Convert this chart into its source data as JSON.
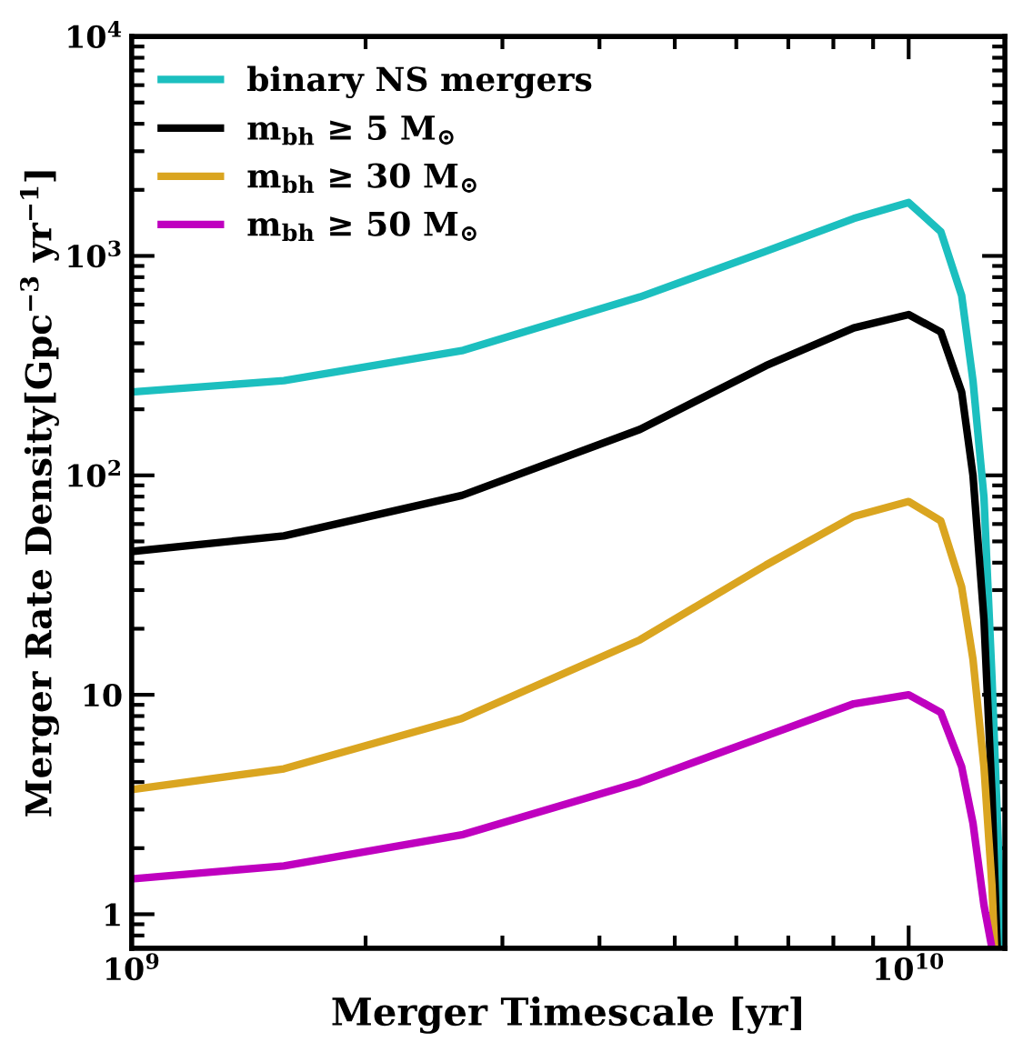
{
  "chart_data": {
    "type": "line",
    "xlabel": "Merger Timescale [yr]",
    "ylabel": "Merger Rate Density[Gpc$^{−3}$ yr$^{−1}$]",
    "log": "xy",
    "xlim": [
      1000000000.0,
      13300000000.0
    ],
    "ylim": [
      0.7,
      10000
    ],
    "xticks": [
      {
        "value": 1000000000.0,
        "label": "10$^{9}$"
      },
      {
        "value": 10000000000.0,
        "label": "10$^{10}$"
      }
    ],
    "yticks": [
      1,
      10,
      {
        "value": 100,
        "label": "10$^{2}$"
      },
      {
        "value": 1000,
        "label": "10$^{3}$"
      },
      {
        "value": 10000,
        "label": "10$^{4}$"
      }
    ],
    "legend": "top left",
    "grid": false,
    "marker": "none",
    "line_style": "solid",
    "series": [
      {
        "name": "binary NS mergers",
        "color": "#1cbfbf",
        "x": [
          1000000000.0,
          1570000000.0,
          2660000000.0,
          4510000000.0,
          6550000000.0,
          8500000000.0,
          10000000000.0,
          11000000000.0,
          11700000000.0,
          12100000000.0,
          12500000000.0,
          12800000000.0,
          13200000000.0
        ],
        "values": [
          240,
          270,
          370,
          650,
          1050,
          1480,
          1750,
          1290,
          660,
          270,
          79,
          12,
          0.7
        ]
      },
      {
        "name": "m$_{bh}$ ≥ 5 M$_{⊙}$",
        "color": "#000000",
        "x": [
          1000000000.0,
          1570000000.0,
          2660000000.0,
          4510000000.0,
          6550000000.0,
          8500000000.0,
          10000000000.0,
          11000000000.0,
          11700000000.0,
          12100000000.0,
          12500000000.0,
          12800000000.0,
          13000000000.0
        ],
        "values": [
          45,
          53,
          81,
          162,
          316,
          470,
          540,
          450,
          240,
          100,
          22,
          3.5,
          0.7
        ]
      },
      {
        "name": "m$_{bh}$ ≥ 30 M$_{⊙}$",
        "color": "#daa520",
        "x": [
          1000000000.0,
          1570000000.0,
          2660000000.0,
          4510000000.0,
          6550000000.0,
          8500000000.0,
          10000000000.0,
          11000000000.0,
          11700000000.0,
          12100000000.0,
          12500000000.0,
          12800000000.0,
          12900000000.0
        ],
        "values": [
          3.7,
          4.6,
          7.8,
          17.8,
          39,
          65,
          76,
          62,
          31,
          14.5,
          4.7,
          1.35,
          0.7
        ]
      },
      {
        "name": "m$_{bh}$ ≥ 50 M$_{⊙}$",
        "color": "#bf00bf",
        "x": [
          1000000000.0,
          1570000000.0,
          2660000000.0,
          4510000000.0,
          6550000000.0,
          8500000000.0,
          10000000000.0,
          11000000000.0,
          11700000000.0,
          12100000000.0,
          12500000000.0,
          12800000000.0
        ],
        "values": [
          1.45,
          1.66,
          2.3,
          4.0,
          6.5,
          9.1,
          10,
          8.3,
          4.7,
          2.6,
          1.1,
          0.7
        ]
      }
    ]
  }
}
